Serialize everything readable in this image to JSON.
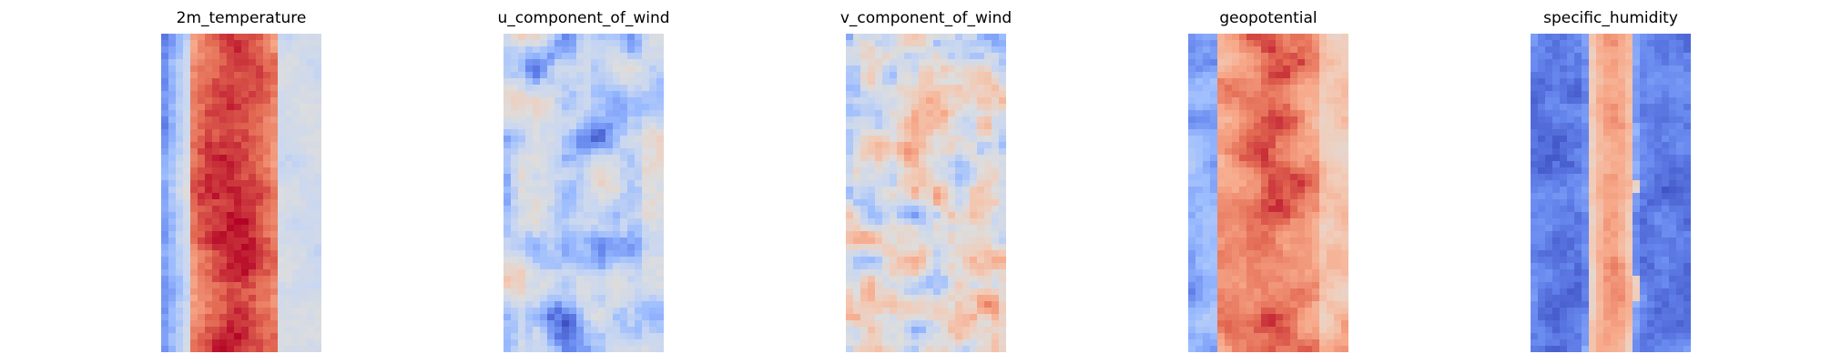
{
  "figure": {
    "colormap": "coolwarm",
    "colormap_stops": [
      "#3b4cc0",
      "#6788ee",
      "#9abbff",
      "#c9d7f0",
      "#dddddd",
      "#f2cbb7",
      "#f7a889",
      "#e36a53",
      "#b40426"
    ],
    "axes_visible": false
  },
  "chart_data": [
    {
      "type": "heatmap",
      "title": "2m_temperature",
      "grid": false,
      "nx": 22,
      "ny": 50,
      "pattern": "wide-warm-band",
      "band_center_fraction": 0.45,
      "band_width_fraction": 0.55,
      "edges": "cool-left, neutral-right",
      "value_range": [
        -1,
        1
      ]
    },
    {
      "type": "heatmap",
      "title": "u_component_of_wind",
      "grid": false,
      "nx": 22,
      "ny": 50,
      "pattern": "mostly-cool-streaks",
      "hot_spots": "scattered warm streaks near edges and center",
      "value_range": [
        -1,
        1
      ]
    },
    {
      "type": "heatmap",
      "title": "v_component_of_wind",
      "grid": false,
      "nx": 22,
      "ny": 50,
      "pattern": "neutral-mottled",
      "hot_spots": "small warm and cool blobs throughout",
      "value_range": [
        -1,
        1
      ]
    },
    {
      "type": "heatmap",
      "title": "geopotential",
      "grid": false,
      "nx": 22,
      "ny": 50,
      "pattern": "warm-band",
      "band_center_fraction": 0.5,
      "band_width_fraction": 0.6,
      "edges": "cool-left, warm-right",
      "value_range": [
        -1,
        1
      ]
    },
    {
      "type": "heatmap",
      "title": "specific_humidity",
      "grid": false,
      "nx": 22,
      "ny": 50,
      "pattern": "narrow-warm-band",
      "band_center_fraction": 0.5,
      "band_width_fraction": 0.28,
      "edges": "cool-both",
      "value_range": [
        -1,
        1
      ]
    }
  ]
}
